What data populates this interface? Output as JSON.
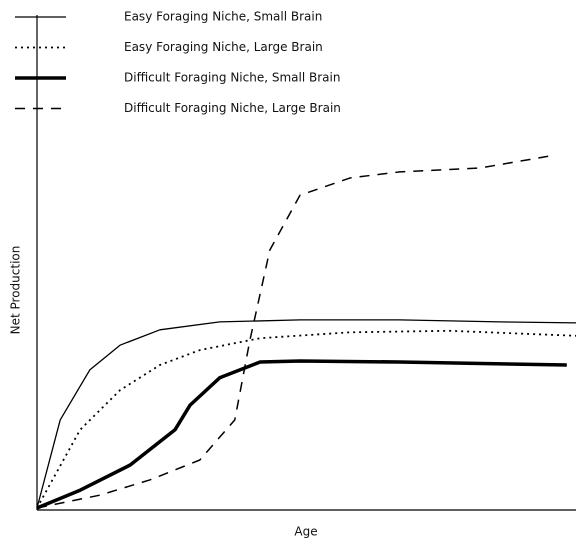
{
  "chart_data": {
    "type": "line",
    "x_label": "Age",
    "y_label": "Net Production",
    "xlim": [
      0,
      100
    ],
    "ylim": [
      0,
      100
    ],
    "series": [
      {
        "name": "Easy Foraging Niche, Small Brain",
        "color": "#000000",
        "line_style": "solid",
        "line_width": 1.3,
        "x": [
          0,
          4.3,
          9.8,
          15.4,
          22.8,
          33.9,
          48.8,
          67.3,
          85.9,
          100
        ],
        "values": [
          0.4,
          18.2,
          28.3,
          33.3,
          36.4,
          38.0,
          38.4,
          38.4,
          38.0,
          37.8
        ]
      },
      {
        "name": "Easy Foraging Niche, Large Brain",
        "color": "#000000",
        "line_style": "dotted",
        "line_width": 1.8,
        "x": [
          0,
          8,
          15.4,
          22.8,
          30.2,
          41.4,
          58.1,
          76.6,
          100
        ],
        "values": [
          0.4,
          16.2,
          24.2,
          29.3,
          32.3,
          34.7,
          35.9,
          36.2,
          35.2
        ]
      },
      {
        "name": "Difficult Foraging Niche, Small Brain",
        "color": "#000000",
        "line_style": "solid",
        "line_width": 3.5,
        "x": [
          0,
          8,
          17.3,
          25.6,
          28.4,
          33.9,
          41.4,
          48.8,
          67.3,
          98.3
        ],
        "values": [
          0.4,
          4.0,
          9.1,
          16.2,
          21.2,
          26.7,
          29.9,
          30.1,
          29.9,
          29.3
        ]
      },
      {
        "name": "Difficult Foraging Niche, Large Brain",
        "color": "#000000",
        "line_style": "dashed",
        "line_width": 1.5,
        "x": [
          0,
          11.7,
          21,
          30.2,
          36.7,
          39.5,
          43.2,
          48.8,
          58.1,
          67.3,
          82.2,
          96.1
        ],
        "values": [
          0.4,
          3.0,
          6.1,
          10.1,
          18.2,
          34.3,
          52.5,
          63.6,
          67.1,
          68.3,
          69.1,
          71.7
        ]
      }
    ]
  }
}
